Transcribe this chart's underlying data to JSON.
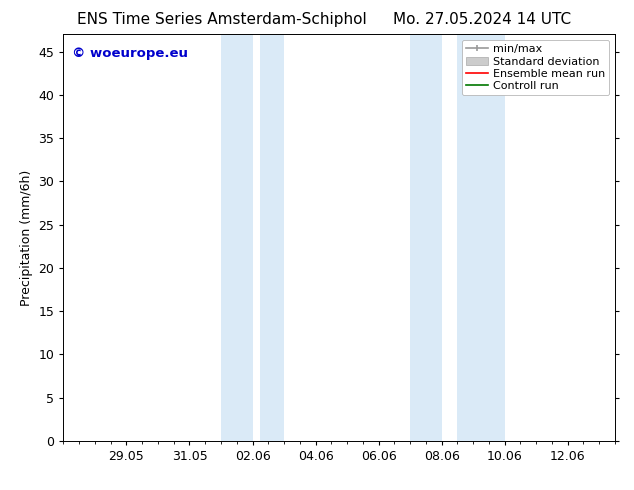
{
  "title_left": "ENS Time Series Amsterdam-Schiphol",
  "title_right": "Mo. 27.05.2024 14 UTC",
  "ylabel": "Precipitation (mm/6h)",
  "ylim": [
    0,
    47
  ],
  "yticks": [
    0,
    5,
    10,
    15,
    20,
    25,
    30,
    35,
    40,
    45
  ],
  "xtick_labels": [
    "29.05",
    "31.05",
    "02.06",
    "04.06",
    "06.06",
    "08.06",
    "10.06",
    "12.06"
  ],
  "xtick_positions": [
    2.0,
    4.0,
    6.0,
    8.0,
    10.0,
    12.0,
    14.0,
    16.0
  ],
  "xlim": [
    0.0,
    17.5
  ],
  "shaded_regions": [
    {
      "xmin": 5.0,
      "xmax": 5.75
    },
    {
      "xmin": 5.75,
      "xmax": 6.75
    },
    {
      "xmin": 11.0,
      "xmax": 11.75
    },
    {
      "xmin": 11.75,
      "xmax": 13.25
    }
  ],
  "shaded_color": "#daeaf7",
  "shaded_line_color": "#b8d4ec",
  "background_color": "#ffffff",
  "watermark_text": "© woeurope.eu",
  "watermark_color": "#0000cc",
  "legend_labels": [
    "min/max",
    "Standard deviation",
    "Ensemble mean run",
    "Controll run"
  ],
  "legend_colors": [
    "#999999",
    "#cccccc",
    "#ff0000",
    "#007700"
  ],
  "title_fontsize": 11,
  "axis_label_fontsize": 9,
  "tick_fontsize": 9,
  "legend_fontsize": 8
}
